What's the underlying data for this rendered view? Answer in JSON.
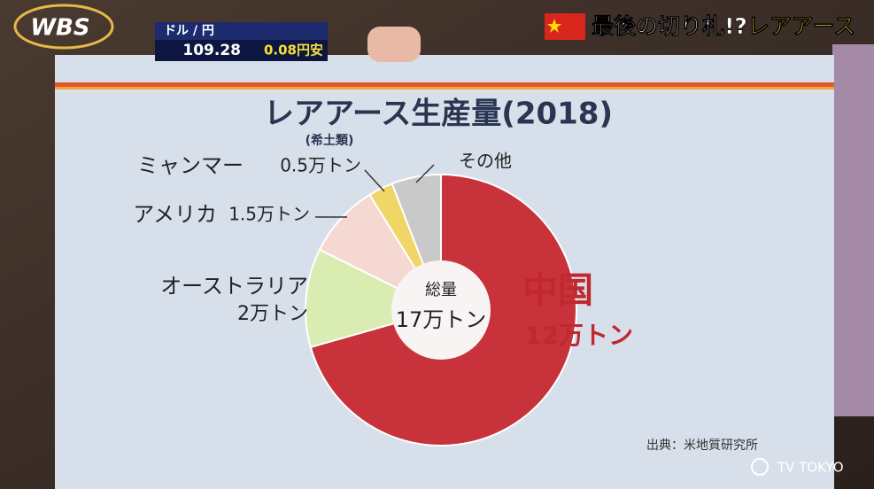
{
  "broadcast": {
    "logo": "WBS",
    "fx_label": "ドル / 円",
    "fx_rate": "109.28",
    "fx_change": "0.08円安",
    "topic_prefix": "最後の切り札!?",
    "topic_highlight": "レアアース",
    "copyright": "TV TOKYO"
  },
  "chart_data": {
    "type": "pie",
    "title": "レアアース生産量(2018)",
    "subtitle": "(希土類)",
    "categories": [
      "中国",
      "オーストラリア",
      "アメリカ",
      "ミャンマー",
      "その他"
    ],
    "values": [
      12,
      2,
      1.5,
      0.5,
      1
    ],
    "value_labels": [
      "12万トン",
      "2万トン",
      "1.5万トン",
      "0.5万トン",
      null
    ],
    "colors": [
      "#c8323a",
      "#d9ecb2",
      "#f6d8d2",
      "#f0d667",
      "#c9c9c9"
    ],
    "center_label": "総量",
    "center_total": {
      "value": 17,
      "label": "17万トン"
    },
    "source": "出典：米地質研究所"
  }
}
